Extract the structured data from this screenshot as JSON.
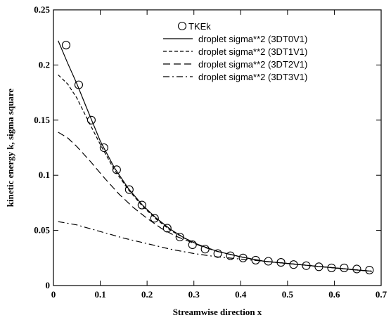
{
  "chart_data": {
    "type": "line",
    "title": "",
    "xlabel": "Streamwise direction x",
    "ylabel": "kinetic energy k, sigma square",
    "xlim": [
      0,
      0.7
    ],
    "ylim": [
      0,
      0.25
    ],
    "xticks": [
      0,
      0.1,
      0.2,
      0.3,
      0.4,
      0.5,
      0.6,
      0.7
    ],
    "xtick_labels": [
      "0",
      "0.1",
      "0.2",
      "0.3",
      "0.4",
      "0.5",
      "0.6",
      "0.7"
    ],
    "yticks": [
      0,
      0.05,
      0.1,
      0.15,
      0.2,
      0.25
    ],
    "ytick_labels": [
      "0",
      "0.05",
      "0.1",
      "0.15",
      "0.2",
      "0.25"
    ],
    "grid": false,
    "legend_position": "top-right",
    "series": [
      {
        "name": "TKEk",
        "style": "circle-markers",
        "x": [
          0.027,
          0.054,
          0.081,
          0.108,
          0.135,
          0.162,
          0.189,
          0.216,
          0.243,
          0.27,
          0.297,
          0.324,
          0.351,
          0.378,
          0.405,
          0.432,
          0.459,
          0.486,
          0.513,
          0.54,
          0.567,
          0.594,
          0.621,
          0.648,
          0.675
        ],
        "y": [
          0.218,
          0.182,
          0.15,
          0.125,
          0.105,
          0.087,
          0.073,
          0.061,
          0.052,
          0.044,
          0.037,
          0.033,
          0.029,
          0.027,
          0.025,
          0.023,
          0.022,
          0.021,
          0.019,
          0.018,
          0.017,
          0.016,
          0.016,
          0.015,
          0.014
        ]
      },
      {
        "name": "droplet sigma**2 (3DT0V1)",
        "style": "solid",
        "x": [
          0.01,
          0.03,
          0.05,
          0.07,
          0.1,
          0.13,
          0.16,
          0.19,
          0.22,
          0.25,
          0.28,
          0.31,
          0.35,
          0.4,
          0.45,
          0.5,
          0.55,
          0.6,
          0.65,
          0.68
        ],
        "y": [
          0.222,
          0.202,
          0.183,
          0.162,
          0.131,
          0.107,
          0.088,
          0.073,
          0.061,
          0.051,
          0.043,
          0.037,
          0.031,
          0.026,
          0.022,
          0.02,
          0.018,
          0.016,
          0.014,
          0.013
        ]
      },
      {
        "name": "droplet sigma**2 (3DT1V1)",
        "style": "dashed",
        "x": [
          0.01,
          0.03,
          0.05,
          0.07,
          0.1,
          0.13,
          0.16,
          0.19,
          0.22,
          0.25,
          0.28,
          0.31,
          0.35,
          0.4,
          0.45,
          0.5,
          0.55,
          0.6,
          0.65,
          0.68
        ],
        "y": [
          0.191,
          0.183,
          0.17,
          0.153,
          0.128,
          0.105,
          0.087,
          0.072,
          0.06,
          0.05,
          0.043,
          0.037,
          0.031,
          0.026,
          0.022,
          0.02,
          0.018,
          0.016,
          0.014,
          0.013
        ]
      },
      {
        "name": "droplet sigma**2 (3DT2V1)",
        "style": "long-dashed",
        "x": [
          0.01,
          0.03,
          0.05,
          0.08,
          0.11,
          0.14,
          0.17,
          0.2,
          0.23,
          0.26,
          0.29,
          0.32,
          0.35,
          0.4,
          0.45,
          0.5,
          0.55,
          0.6,
          0.65,
          0.68
        ],
        "y": [
          0.139,
          0.134,
          0.126,
          0.112,
          0.097,
          0.083,
          0.071,
          0.061,
          0.052,
          0.045,
          0.04,
          0.035,
          0.031,
          0.026,
          0.022,
          0.02,
          0.018,
          0.016,
          0.014,
          0.013
        ]
      },
      {
        "name": "droplet sigma**2 (3DT3V1)",
        "style": "dash-dot",
        "x": [
          0.01,
          0.05,
          0.1,
          0.15,
          0.2,
          0.25,
          0.3,
          0.35,
          0.4,
          0.45,
          0.5,
          0.55,
          0.6,
          0.65,
          0.68
        ],
        "y": [
          0.058,
          0.055,
          0.049,
          0.043,
          0.038,
          0.033,
          0.029,
          0.026,
          0.024,
          0.022,
          0.02,
          0.018,
          0.016,
          0.014,
          0.013
        ]
      }
    ]
  }
}
